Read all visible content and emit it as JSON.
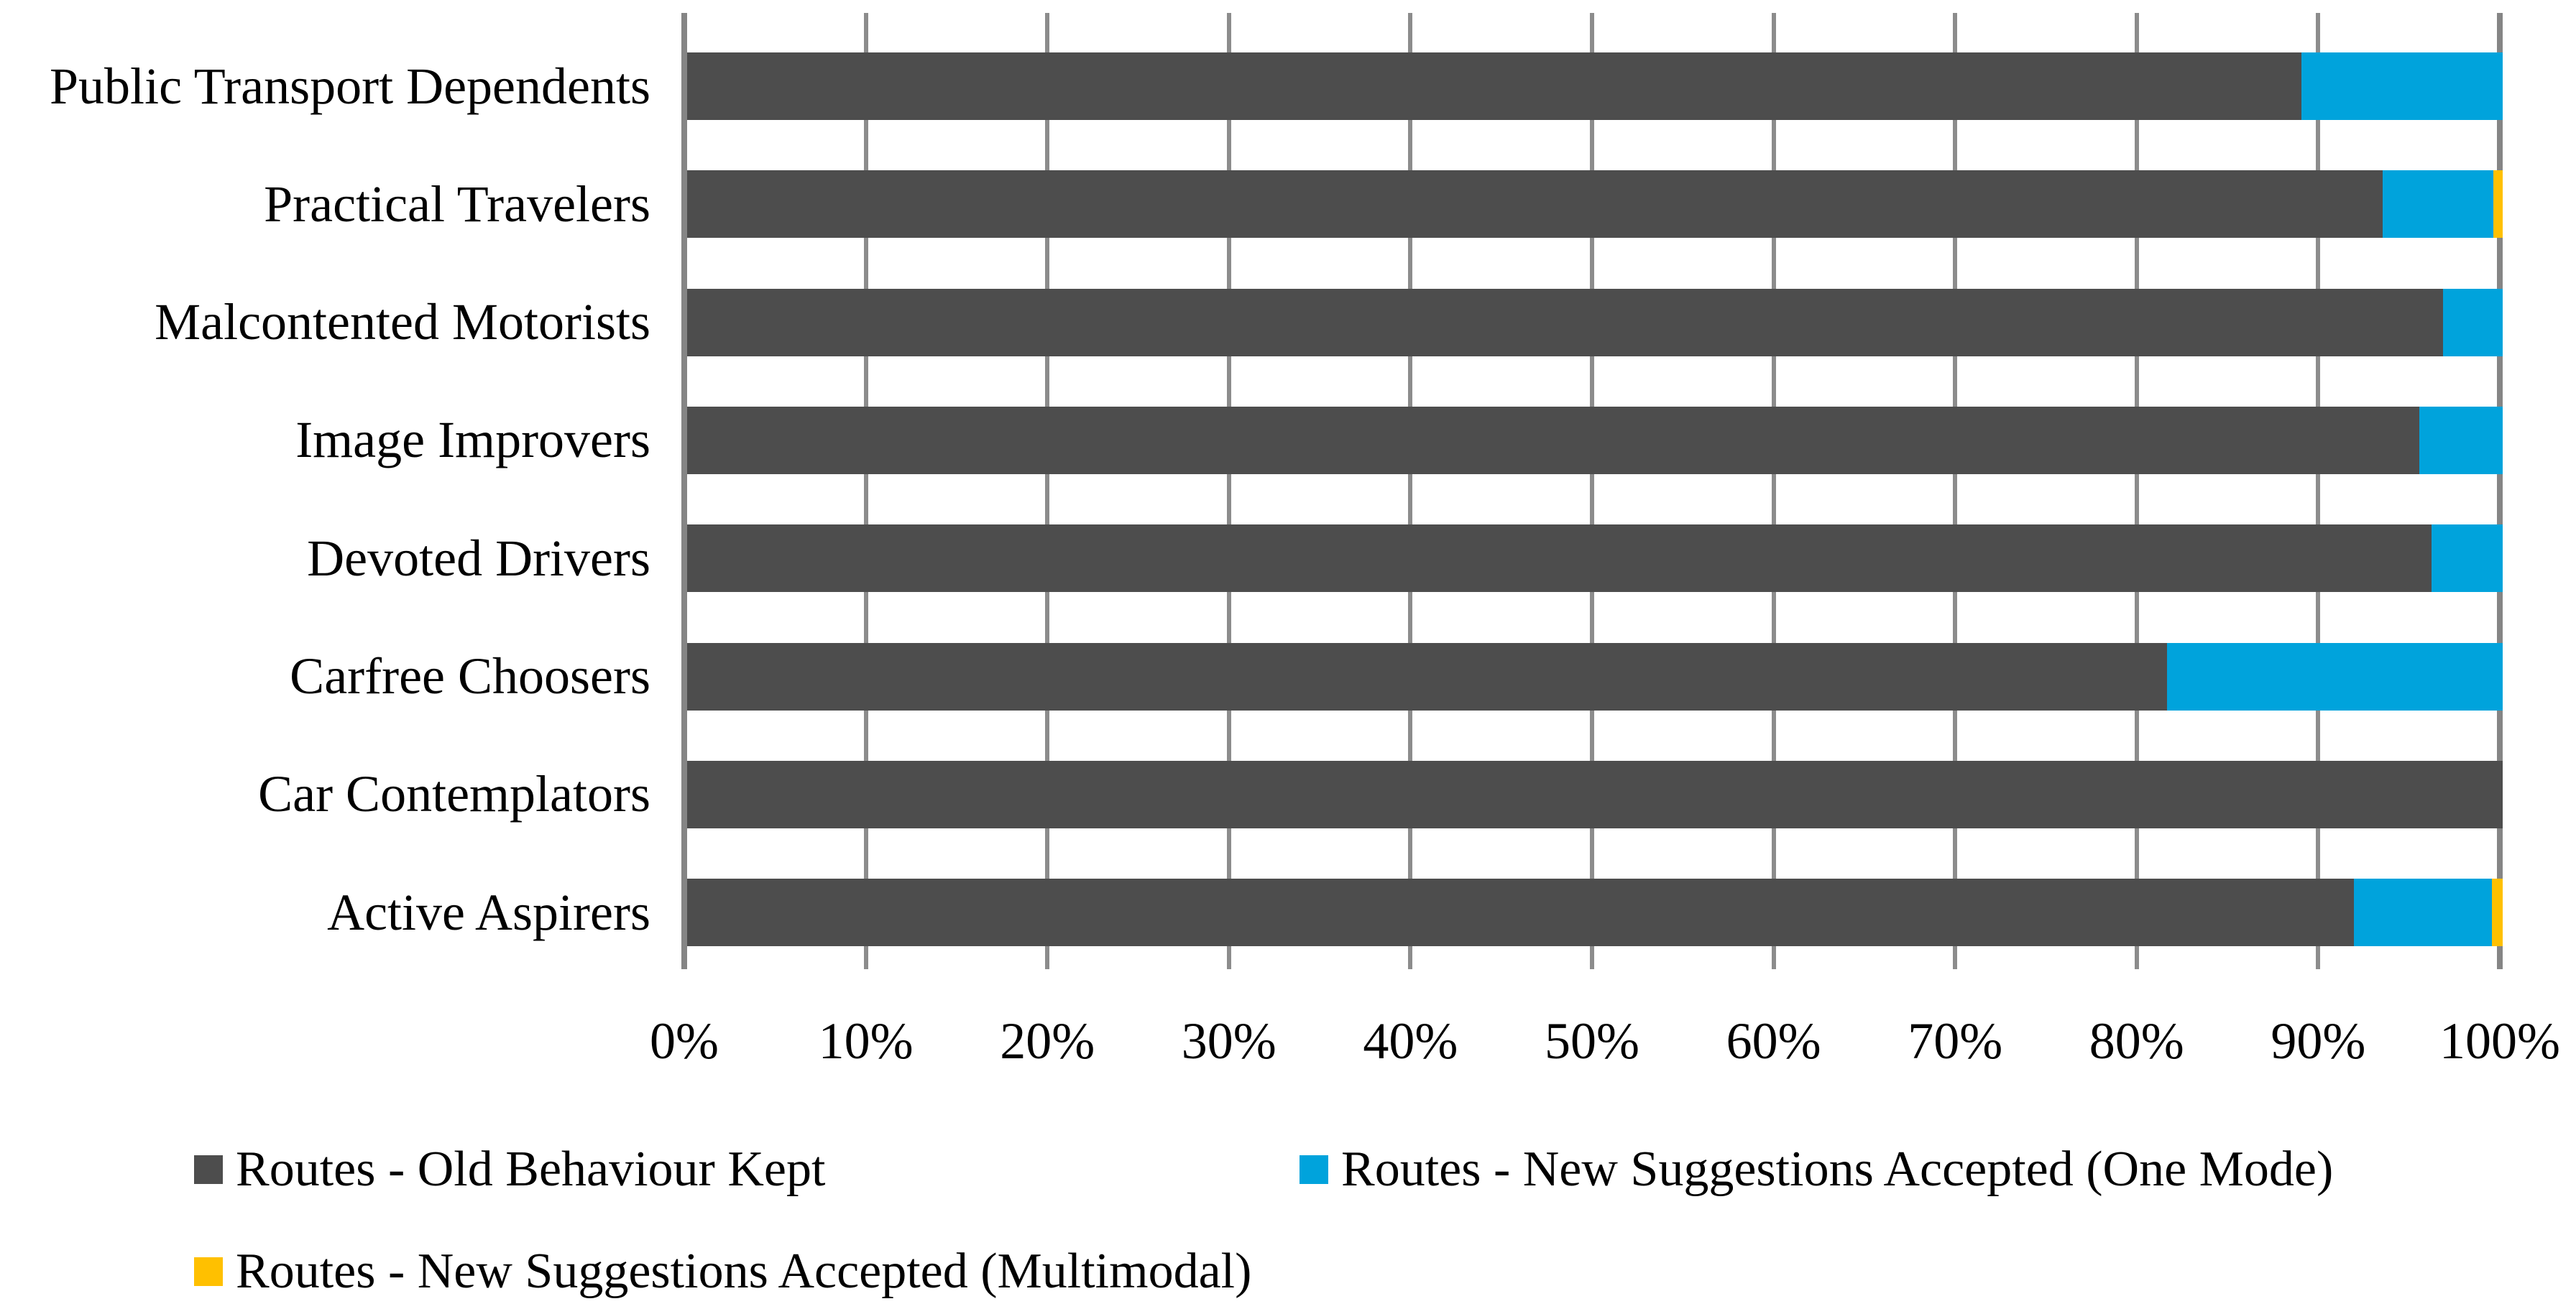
{
  "chart_data": {
    "type": "bar",
    "orientation": "horizontal",
    "stacked": true,
    "title": "",
    "xlabel": "",
    "ylabel": "",
    "x_axis": {
      "min": 0,
      "max": 100,
      "unit": "%",
      "tick_labels": [
        "0%",
        "10%",
        "20%",
        "30%",
        "40%",
        "50%",
        "60%",
        "70%",
        "80%",
        "90%",
        "100%"
      ]
    },
    "grid": true,
    "legend_position": "bottom",
    "categories": [
      "Public Transport Dependents",
      "Practical Travelers",
      "Malcontented Motorists",
      "Image Improvers",
      "Devoted Drivers",
      "Carfree Choosers",
      "Car Contemplators",
      "Active Aspirers"
    ],
    "series": [
      {
        "name": "Routes - Old Behaviour Kept",
        "color": "#4D4D4D",
        "values": [
          88.9,
          93.4,
          96.7,
          95.4,
          96.1,
          81.5,
          100,
          91.8
        ]
      },
      {
        "name": "Routes - New Suggestions Accepted (One Mode)",
        "color": "#00A3DC",
        "values": [
          11.1,
          6.1,
          3.3,
          4.6,
          3.9,
          18.5,
          0,
          7.6
        ]
      },
      {
        "name": "Routes - New Suggestions Accepted (Multimodal)",
        "color": "#FFC000",
        "values": [
          0,
          0.5,
          0,
          0,
          0,
          0,
          0,
          0.6
        ]
      }
    ],
    "gridline_color": "#8C8C8C"
  }
}
